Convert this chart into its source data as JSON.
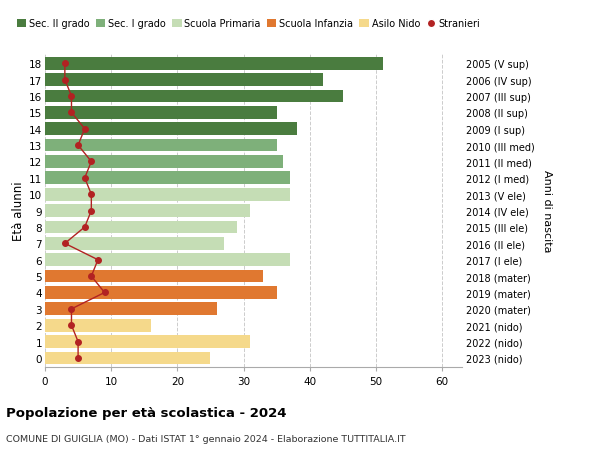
{
  "ages": [
    18,
    17,
    16,
    15,
    14,
    13,
    12,
    11,
    10,
    9,
    8,
    7,
    6,
    5,
    4,
    3,
    2,
    1,
    0
  ],
  "bar_values": [
    51,
    42,
    45,
    35,
    38,
    35,
    36,
    37,
    37,
    31,
    29,
    27,
    37,
    33,
    35,
    26,
    16,
    31,
    25
  ],
  "stranieri": [
    3,
    3,
    4,
    4,
    6,
    5,
    7,
    6,
    7,
    7,
    6,
    3,
    8,
    7,
    9,
    4,
    4,
    5,
    5
  ],
  "right_labels": [
    "2005 (V sup)",
    "2006 (IV sup)",
    "2007 (III sup)",
    "2008 (II sup)",
    "2009 (I sup)",
    "2010 (III med)",
    "2011 (II med)",
    "2012 (I med)",
    "2013 (V ele)",
    "2014 (IV ele)",
    "2015 (III ele)",
    "2016 (II ele)",
    "2017 (I ele)",
    "2018 (mater)",
    "2019 (mater)",
    "2020 (mater)",
    "2021 (nido)",
    "2022 (nido)",
    "2023 (nido)"
  ],
  "bar_colors": [
    "#4a7c3f",
    "#4a7c3f",
    "#4a7c3f",
    "#4a7c3f",
    "#4a7c3f",
    "#7eb07a",
    "#7eb07a",
    "#7eb07a",
    "#c5ddb5",
    "#c5ddb5",
    "#c5ddb5",
    "#c5ddb5",
    "#c5ddb5",
    "#e07830",
    "#e07830",
    "#e07830",
    "#f5d98b",
    "#f5d98b",
    "#f5d98b"
  ],
  "legend_labels": [
    "Sec. II grado",
    "Sec. I grado",
    "Scuola Primaria",
    "Scuola Infanzia",
    "Asilo Nido",
    "Stranieri"
  ],
  "legend_colors": [
    "#4a7c3f",
    "#7eb07a",
    "#c5ddb5",
    "#e07830",
    "#f5d98b",
    "#b22222"
  ],
  "stranieri_color": "#b22222",
  "title_bold": "Popolazione per età scolastica - 2024",
  "subtitle": "COMUNE DI GUIGLIA (MO) - Dati ISTAT 1° gennaio 2024 - Elaborazione TUTTITALIA.IT",
  "ylabel": "Età alunni",
  "right_ylabel": "Anni di nascita",
  "xlim": [
    0,
    63
  ],
  "xticks": [
    0,
    10,
    20,
    30,
    40,
    50,
    60
  ],
  "bg_color": "#ffffff",
  "grid_color": "#cccccc",
  "bar_height": 0.78
}
